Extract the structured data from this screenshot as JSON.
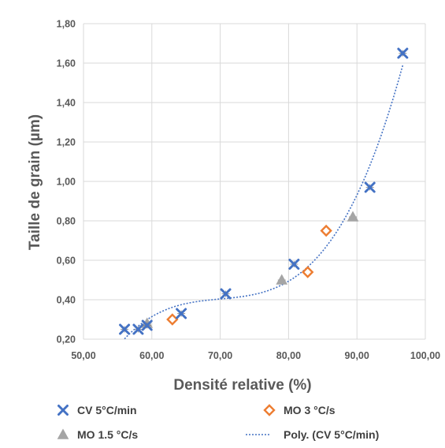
{
  "chart_data": {
    "type": "scatter",
    "xlabel": "Densité relative (%)",
    "ylabel": "Taille de grain (µm)",
    "xlim": [
      50,
      100
    ],
    "ylim": [
      0.2,
      1.8
    ],
    "x_ticks": [
      "50,00",
      "60,00",
      "70,00",
      "80,00",
      "90,00",
      "100,00"
    ],
    "y_ticks": [
      "0,20",
      "0,40",
      "0,60",
      "0,80",
      "1,00",
      "1,20",
      "1,40",
      "1,60",
      "1,80"
    ],
    "grid": true,
    "legend_position": "bottom",
    "series": [
      {
        "name": "CV 5°C/min",
        "marker": "x",
        "color": "#4472c4",
        "points": [
          [
            56.0,
            0.25
          ],
          [
            58.0,
            0.25
          ],
          [
            59.3,
            0.27
          ],
          [
            64.3,
            0.33
          ],
          [
            70.8,
            0.43
          ],
          [
            80.8,
            0.58
          ],
          [
            91.9,
            0.97
          ],
          [
            96.7,
            1.65
          ]
        ]
      },
      {
        "name": "MO 3 °C/s",
        "marker": "diamond",
        "color": "#ed7d31",
        "points": [
          [
            63.0,
            0.3
          ],
          [
            82.8,
            0.54
          ],
          [
            85.5,
            0.75
          ]
        ]
      },
      {
        "name": "MO 1.5 °C/s",
        "marker": "triangle",
        "color": "#a5a5a5",
        "points": [
          [
            59.3,
            0.28
          ],
          [
            79.0,
            0.5
          ],
          [
            89.4,
            0.82
          ]
        ]
      }
    ],
    "trendline": {
      "name": "Poly. (CV 5°C/min)",
      "style": "dotted",
      "color": "#4472c4"
    }
  }
}
